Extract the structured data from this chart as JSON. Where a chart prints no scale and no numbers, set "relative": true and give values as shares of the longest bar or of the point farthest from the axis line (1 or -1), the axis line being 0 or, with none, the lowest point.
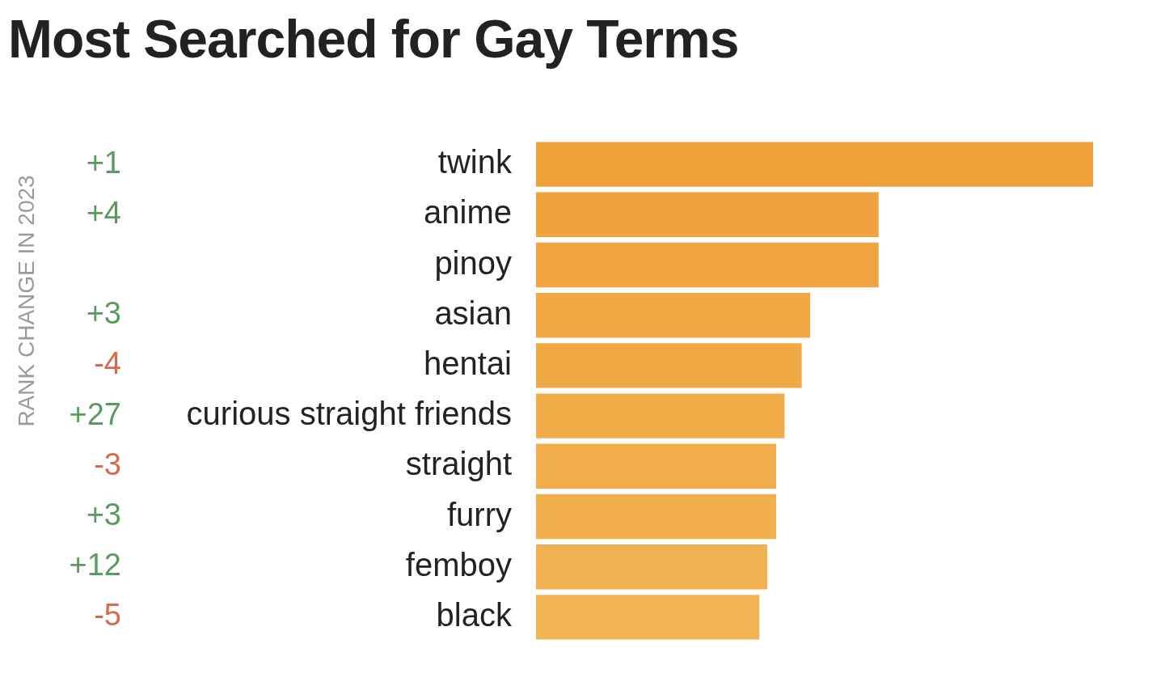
{
  "chart_data": {
    "type": "bar",
    "orientation": "horizontal",
    "relative": true,
    "title": "Most Searched for Gay Terms",
    "categories": [
      "twink",
      "anime",
      "pinoy",
      "asian",
      "hentai",
      "curious straight friends",
      "straight",
      "furry",
      "femboy",
      "black"
    ],
    "values": [
      1,
      0.615,
      0.615,
      0.492,
      0.477,
      0.446,
      0.431,
      0.431,
      0.415,
      0.401
    ],
    "colors": [
      "#f0a13a",
      "#f0a33d",
      "#f0a43f",
      "#f1a742",
      "#f1a944",
      "#f1ab47",
      "#f2ad4a",
      "#f2af4d",
      "#f2b150",
      "#f2b352"
    ],
    "annotations": [
      "RANK CHANGE IN 2023",
      "+1",
      "+4",
      null,
      "+3",
      "-4",
      "+27",
      "-3",
      "+3",
      "+12",
      "-5"
    ],
    "grid": false,
    "legend": false
  }
}
